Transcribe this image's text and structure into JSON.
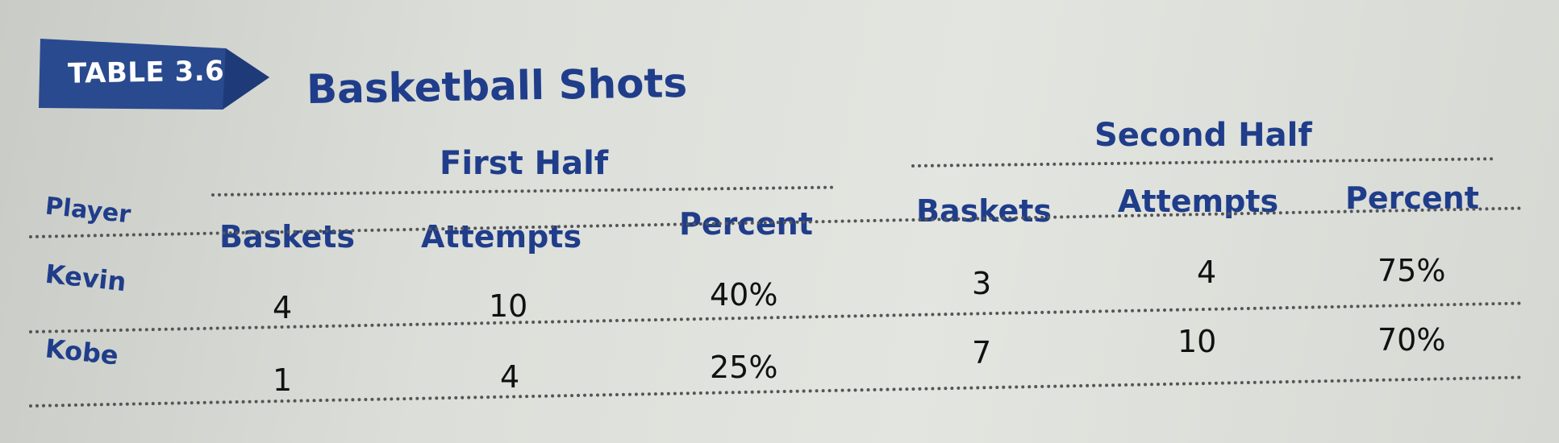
{
  "table": {
    "label": "TABLE 3.6",
    "title": "Basketball Shots",
    "player_header": "Player",
    "groups": [
      "First Half",
      "Second Half"
    ],
    "columns": [
      "Baskets",
      "Attempts",
      "Percent",
      "Baskets",
      "Attempts",
      "Percent"
    ],
    "rows": [
      {
        "player": "Kevin",
        "values": [
          "4",
          "10",
          "40%",
          "3",
          "4",
          "75%"
        ]
      },
      {
        "player": "Kobe",
        "values": [
          "1",
          "4",
          "25%",
          "7",
          "10",
          "70%"
        ]
      }
    ]
  },
  "colors": {
    "heading": "#1f3d8a",
    "badge": "#2a4a8f",
    "text": "#111111"
  }
}
